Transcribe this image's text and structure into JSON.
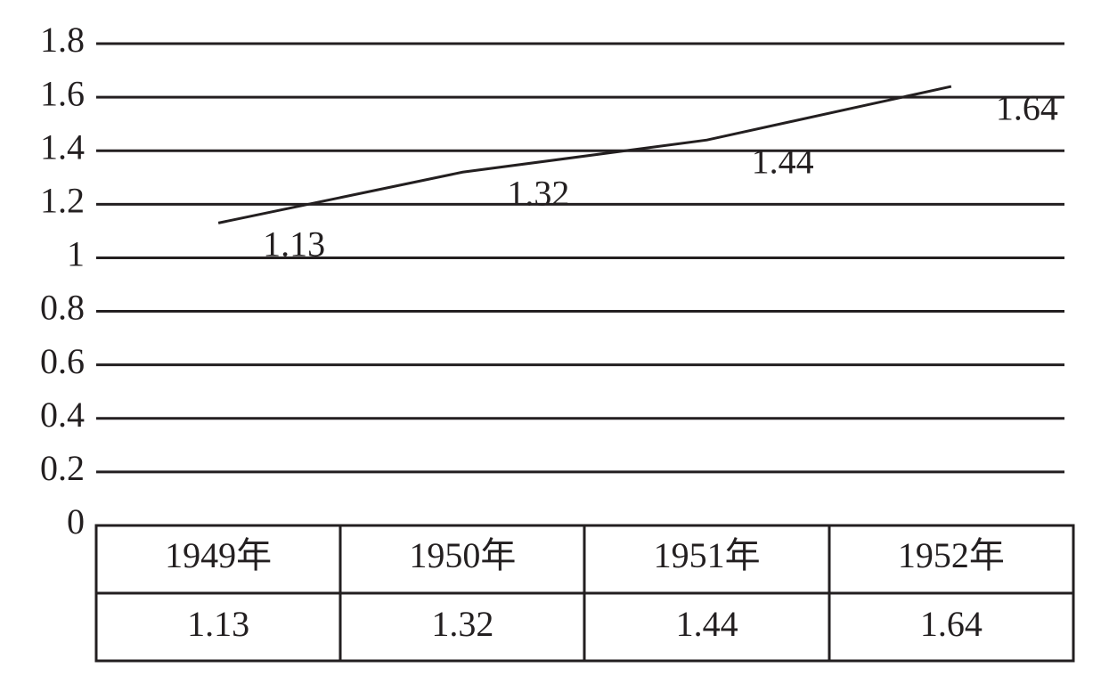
{
  "chart_data": {
    "type": "line",
    "categories": [
      "1949年",
      "1950年",
      "1951年",
      "1952年"
    ],
    "series": [
      {
        "color": "#231f20",
        "values": [
          1.13,
          1.32,
          1.44,
          1.64
        ]
      }
    ],
    "ylim": [
      0,
      1.8
    ],
    "yticks": [
      0,
      0.2,
      0.4,
      0.6,
      0.8,
      1,
      1.2,
      1.4,
      1.6,
      1.8
    ],
    "grid": true
  }
}
